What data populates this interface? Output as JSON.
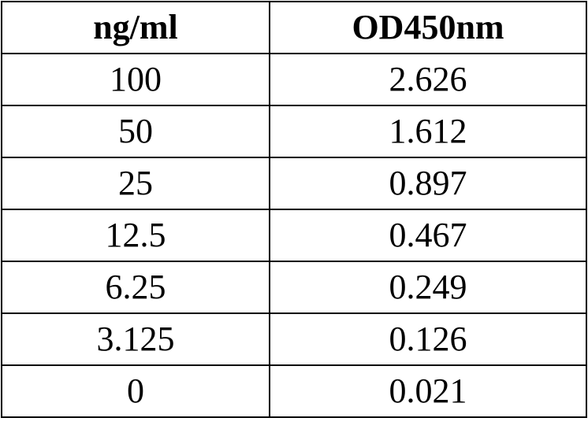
{
  "table": {
    "header": [
      "ng/ml",
      "OD450nm"
    ],
    "rows": [
      [
        "100",
        "2.626"
      ],
      [
        "50",
        "1.612"
      ],
      [
        "25",
        "0.897"
      ],
      [
        "12.5",
        "0.467"
      ],
      [
        "6.25",
        "0.249"
      ],
      [
        "3.125",
        "0.126"
      ],
      [
        "0",
        "0.021"
      ]
    ]
  }
}
